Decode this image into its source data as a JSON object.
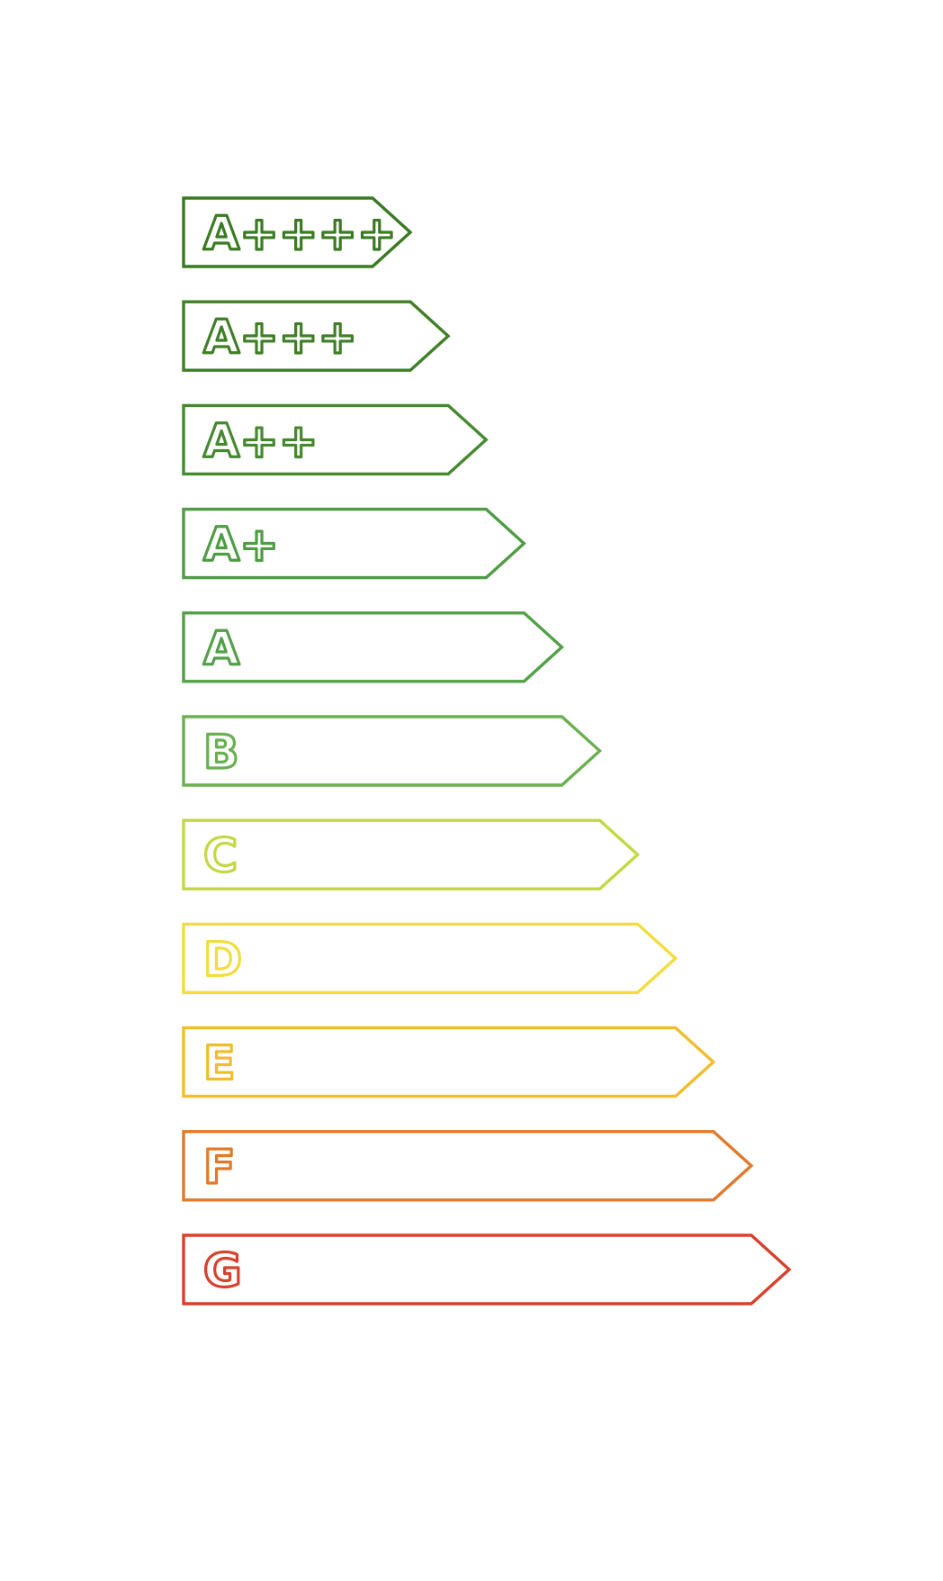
{
  "energy_scale": {
    "classes": [
      {
        "label": "A++++",
        "color": "#3a7b22"
      },
      {
        "label": "A+++",
        "color": "#3f7f26"
      },
      {
        "label": "A++",
        "color": "#45892f"
      },
      {
        "label": "A+",
        "color": "#4e9c44"
      },
      {
        "label": "A",
        "color": "#52a048"
      },
      {
        "label": "B",
        "color": "#6ab052"
      },
      {
        "label": "C",
        "color": "#c3d843"
      },
      {
        "label": "D",
        "color": "#f3dd3c"
      },
      {
        "label": "E",
        "color": "#f1bd2c"
      },
      {
        "label": "F",
        "color": "#e07a2a"
      },
      {
        "label": "G",
        "color": "#d8412c"
      }
    ]
  }
}
